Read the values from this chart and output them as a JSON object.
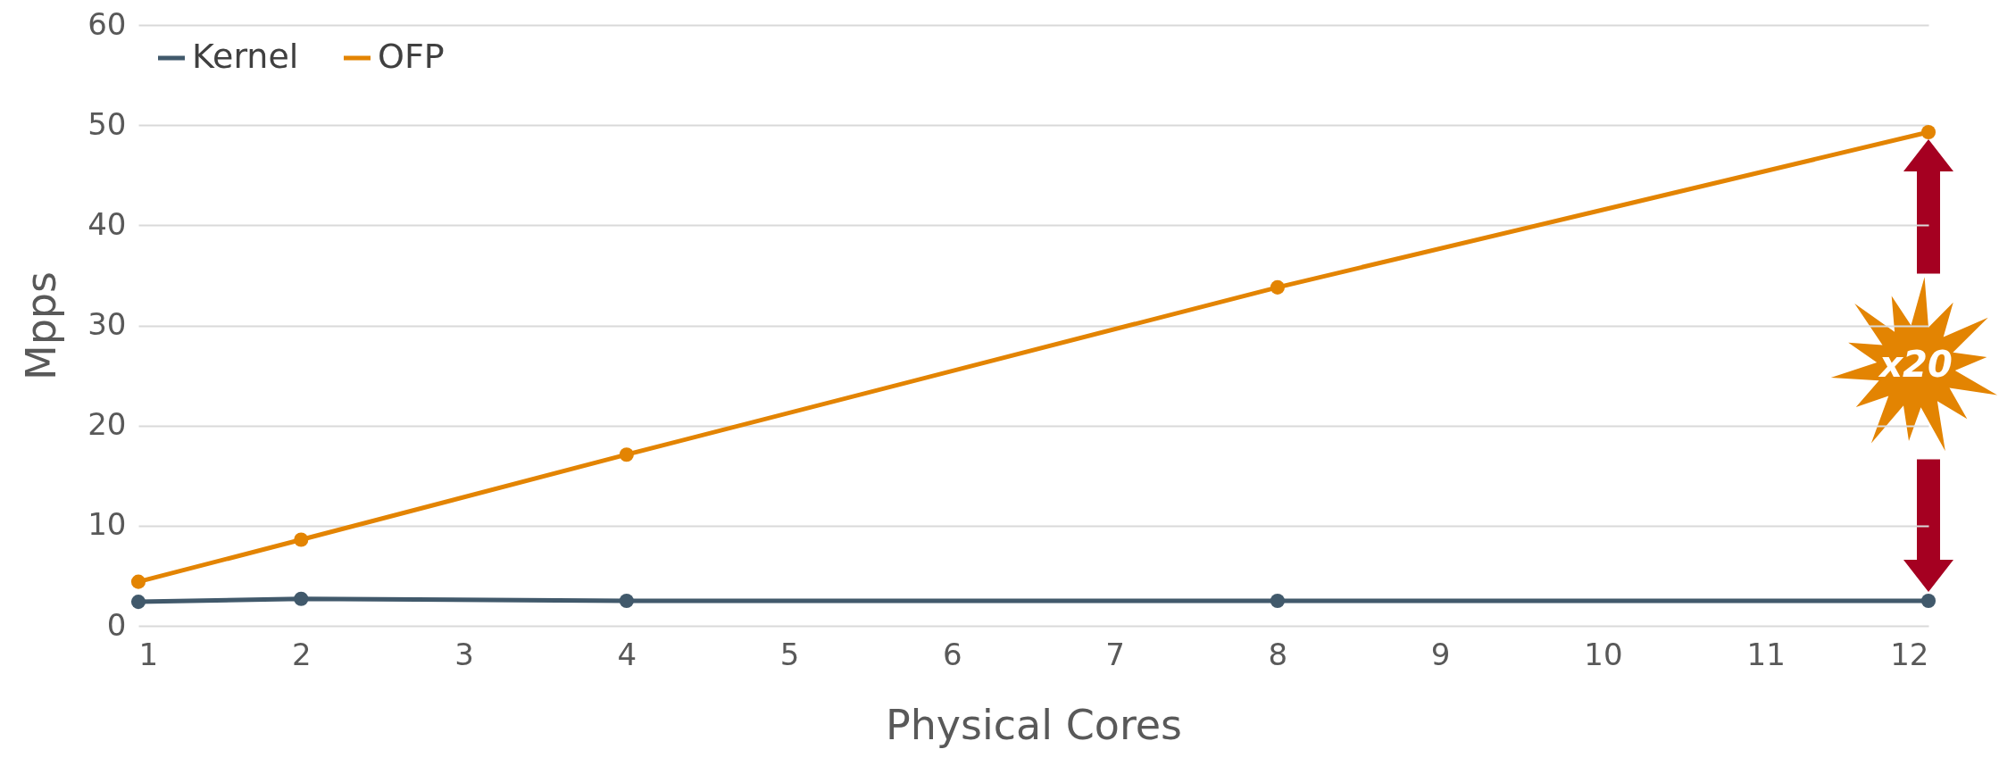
{
  "chart_data": {
    "type": "line",
    "xlabel": "Physical Cores",
    "ylabel": "Mpps",
    "x": [
      1,
      2,
      4,
      8,
      12
    ],
    "series": [
      {
        "name": "Kernel",
        "color": "#41596b",
        "values": [
          2.4,
          2.7,
          2.5,
          2.5,
          2.5
        ]
      },
      {
        "name": "OFP",
        "color": "#e38402",
        "values": [
          4.4,
          8.6,
          17.1,
          33.8,
          49.3
        ]
      }
    ],
    "xlim": [
      1,
      12
    ],
    "xticks": [
      1,
      2,
      3,
      4,
      5,
      6,
      7,
      8,
      9,
      10,
      11,
      12
    ],
    "ylim": [
      0,
      60
    ],
    "yticks": [
      0,
      10,
      20,
      30,
      40,
      50,
      60
    ],
    "grid": "y",
    "legend": "top left",
    "marker": "circle",
    "line_style": "solid",
    "annotations": [
      "x20"
    ]
  }
}
